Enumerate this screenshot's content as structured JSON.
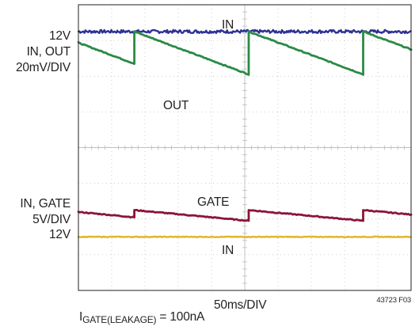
{
  "chart_data": {
    "type": "line",
    "title": "",
    "xlabel": "50ms/DIV",
    "figure_id": "43723 F03",
    "footnote": {
      "main": "I",
      "subscript": "GATE(LEAKAGE)",
      "value": " = 100nA"
    },
    "x_unit": "ms",
    "x_per_div": 50,
    "x_divisions": 10,
    "x_range_ms": [
      0,
      500
    ],
    "vertical_divisions": 8,
    "grid": true,
    "panels": [
      {
        "name": "top",
        "channel_labels": [
          "IN, OUT",
          "20mV/DIV"
        ],
        "reference_label": "12V",
        "div_range": [
          0,
          4
        ],
        "series": [
          {
            "name": "IN",
            "color": "#2e3192",
            "waveform": "flat",
            "level_div": 3.25
          },
          {
            "name": "OUT",
            "color": "#2a8a45",
            "waveform": "sawtooth",
            "high_div": 3.25,
            "low_div": 2.05,
            "first_value_div": 2.35,
            "reset_times_ms": [
              84,
              256,
              428
            ]
          }
        ]
      },
      {
        "name": "bottom",
        "channel_labels": [
          "IN, GATE",
          "5V/DIV"
        ],
        "reference_label": "12V",
        "div_range": [
          0,
          4
        ],
        "series": [
          {
            "name": "GATE",
            "color": "#8b1538",
            "waveform": "sawtooth",
            "high_div": 2.25,
            "low_div": 1.95,
            "first_value_div": 2.05,
            "reset_times_ms": [
              84,
              256,
              428
            ]
          },
          {
            "name": "IN",
            "color": "#e0b52a",
            "waveform": "flat",
            "level_div": 1.5
          }
        ]
      }
    ],
    "trace_labels": [
      {
        "text": "IN",
        "panel": "top"
      },
      {
        "text": "OUT",
        "panel": "top"
      },
      {
        "text": "GATE",
        "panel": "bottom"
      },
      {
        "text": "IN",
        "panel": "bottom"
      }
    ]
  }
}
